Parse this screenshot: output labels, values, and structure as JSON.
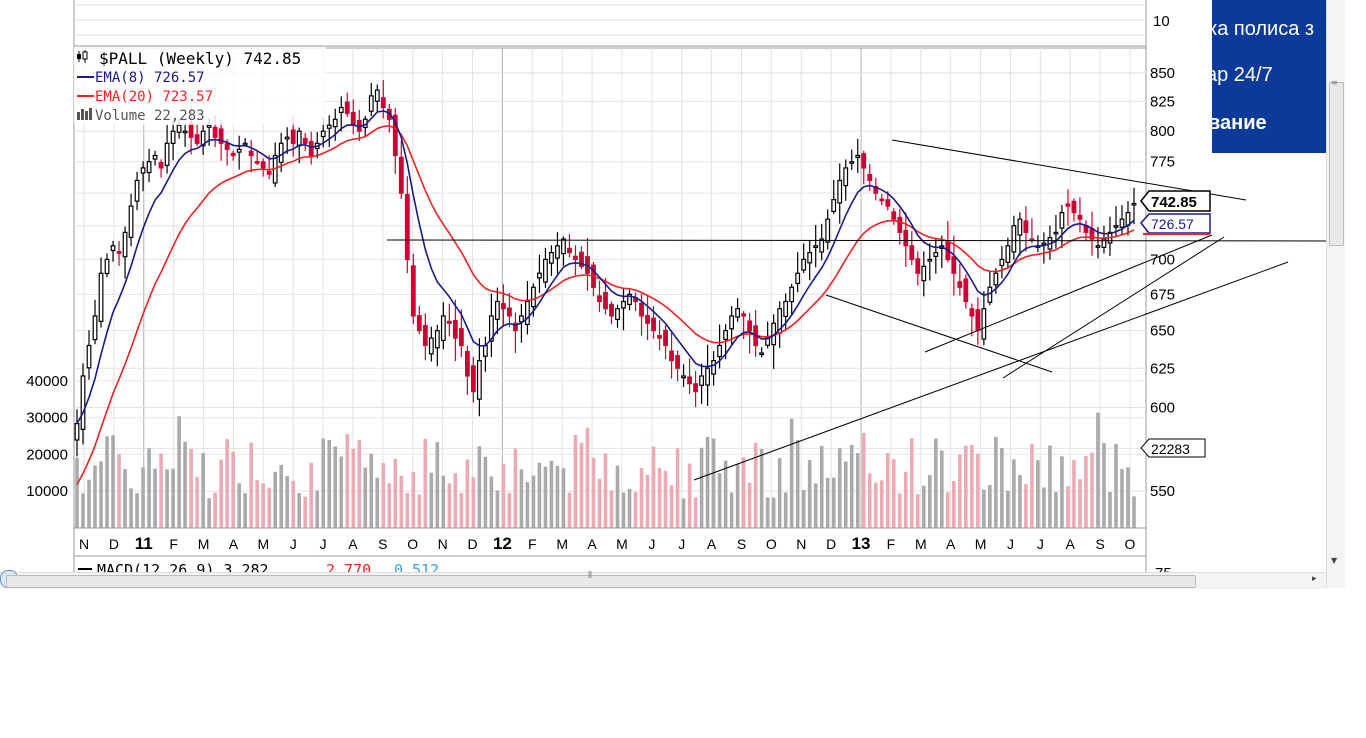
{
  "chart_data": {
    "type": "candlestick",
    "symbol_label": "$PALL (Weekly) 742.85",
    "ema8_label": "EMA(8) 726.57",
    "ema20_label": "EMA(20) 723.57",
    "volume_label": "Volume 22,283",
    "macd_label": {
      "prefix": "MACD(12,26,9) 3.282,",
      "signal": "2.770,",
      "hist": "0.512"
    },
    "price_tag": "742.85",
    "ema8_tag": "726.57",
    "volume_tag": "22283",
    "price_ticks": [
      550,
      575,
      600,
      625,
      650,
      675,
      700,
      725,
      750,
      775,
      800,
      825,
      850
    ],
    "price_tick_labels": [
      "550",
      "",
      "600",
      "625",
      "650",
      "675",
      "700",
      "",
      "",
      "775",
      "800",
      "825",
      "850"
    ],
    "top_panel_tick": "10",
    "macd_panel_tick": "75",
    "volume_ticks": [
      10000,
      20000,
      30000,
      40000
    ],
    "volume_tick_labels": [
      "10000",
      "20000",
      "30000",
      "40000"
    ],
    "x_labels": [
      {
        "text": "N",
        "bold": false
      },
      {
        "text": "D",
        "bold": false
      },
      {
        "text": "11",
        "bold": true
      },
      {
        "text": "F",
        "bold": false
      },
      {
        "text": "M",
        "bold": false
      },
      {
        "text": "A",
        "bold": false
      },
      {
        "text": "M",
        "bold": false
      },
      {
        "text": "J",
        "bold": false
      },
      {
        "text": "J",
        "bold": false
      },
      {
        "text": "A",
        "bold": false
      },
      {
        "text": "S",
        "bold": false
      },
      {
        "text": "O",
        "bold": false
      },
      {
        "text": "N",
        "bold": false
      },
      {
        "text": "D",
        "bold": false
      },
      {
        "text": "12",
        "bold": true
      },
      {
        "text": "F",
        "bold": false
      },
      {
        "text": "M",
        "bold": false
      },
      {
        "text": "A",
        "bold": false
      },
      {
        "text": "M",
        "bold": false
      },
      {
        "text": "J",
        "bold": false
      },
      {
        "text": "J",
        "bold": false
      },
      {
        "text": "A",
        "bold": false
      },
      {
        "text": "S",
        "bold": false
      },
      {
        "text": "O",
        "bold": false
      },
      {
        "text": "N",
        "bold": false
      },
      {
        "text": "D",
        "bold": false
      },
      {
        "text": "13",
        "bold": true
      },
      {
        "text": "F",
        "bold": false
      },
      {
        "text": "M",
        "bold": false
      },
      {
        "text": "A",
        "bold": false
      },
      {
        "text": "M",
        "bold": false
      },
      {
        "text": "J",
        "bold": false
      },
      {
        "text": "J",
        "bold": false
      },
      {
        "text": "A",
        "bold": false
      },
      {
        "text": "S",
        "bold": false
      },
      {
        "text": "O",
        "bold": false
      }
    ],
    "weekly_close": [
      590,
      620,
      640,
      660,
      690,
      700,
      710,
      705,
      720,
      740,
      760,
      770,
      775,
      780,
      770,
      790,
      800,
      805,
      800,
      795,
      790,
      800,
      805,
      795,
      790,
      785,
      780,
      785,
      790,
      780,
      775,
      770,
      765,
      780,
      790,
      795,
      790,
      800,
      790,
      780,
      790,
      800,
      805,
      810,
      820,
      815,
      805,
      800,
      810,
      830,
      835,
      820,
      810,
      780,
      750,
      700,
      660,
      650,
      640,
      645,
      650,
      660,
      655,
      645,
      640,
      620,
      610,
      630,
      640,
      660,
      670,
      665,
      660,
      650,
      660,
      670,
      680,
      690,
      700,
      705,
      710,
      715,
      705,
      700,
      695,
      690,
      680,
      670,
      665,
      660,
      665,
      670,
      675,
      670,
      660,
      655,
      650,
      645,
      640,
      630,
      625,
      620,
      615,
      610,
      620,
      625,
      630,
      640,
      650,
      660,
      665,
      660,
      650,
      640,
      635,
      645,
      655,
      665,
      670,
      680,
      690,
      700,
      705,
      710,
      715,
      730,
      745,
      760,
      770,
      775,
      780,
      770,
      760,
      750,
      745,
      740,
      730,
      720,
      710,
      700,
      690,
      695,
      700,
      705,
      710,
      700,
      690,
      680,
      670,
      660,
      650,
      665,
      680,
      690,
      700,
      710,
      725,
      730,
      720,
      715,
      710,
      712,
      716,
      720,
      735,
      740,
      735,
      730,
      720,
      715,
      710,
      715,
      720,
      725,
      730,
      735,
      742
    ],
    "series": [
      {
        "name": "EMA(8)",
        "color": "#1a1a8c"
      },
      {
        "name": "EMA(20)",
        "color": "#ee2222"
      }
    ],
    "colors": {
      "up": "#000000",
      "down": "#cc0033",
      "vol_up": "#aaaaaa",
      "vol_down": "#eeaab4",
      "ema8": "#1a1a8c",
      "ema20": "#ee2222"
    }
  },
  "ad": {
    "line1": "ка полиса з",
    "line2": "ар 24/7",
    "line3": "вание",
    "background": "#0b3a99"
  },
  "icons": {
    "legend_icon": "candlestick-icon",
    "volume_icon": "volume-bars-icon"
  }
}
